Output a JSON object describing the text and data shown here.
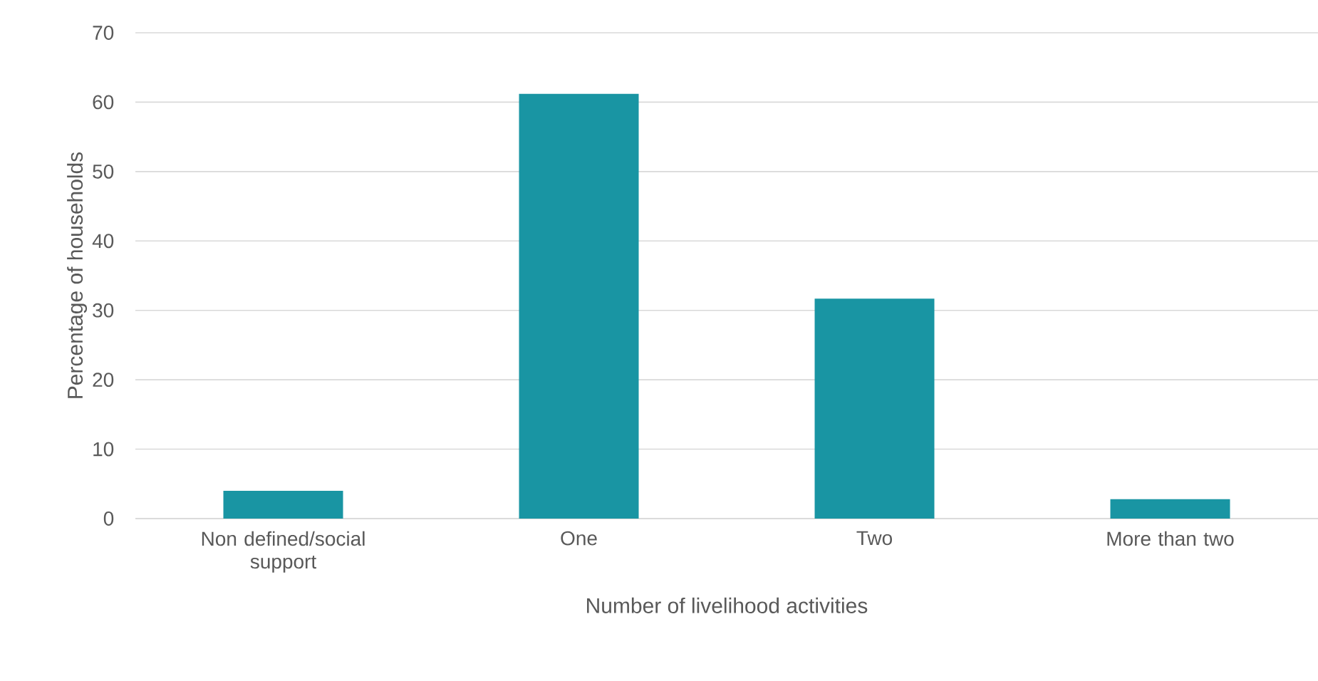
{
  "chart_data": {
    "type": "bar",
    "xlabel": "Number of livelihood activities",
    "ylabel": "Percentage of households",
    "categories": [
      "Non defined/social support",
      "One",
      "Two",
      "More than two"
    ],
    "values": [
      4.0,
      61.2,
      31.7,
      2.8
    ],
    "color": "#1995a3",
    "ylim": [
      0,
      70
    ],
    "yticks": [
      0,
      10,
      20,
      30,
      40,
      50,
      60,
      70
    ],
    "grid": "y"
  }
}
